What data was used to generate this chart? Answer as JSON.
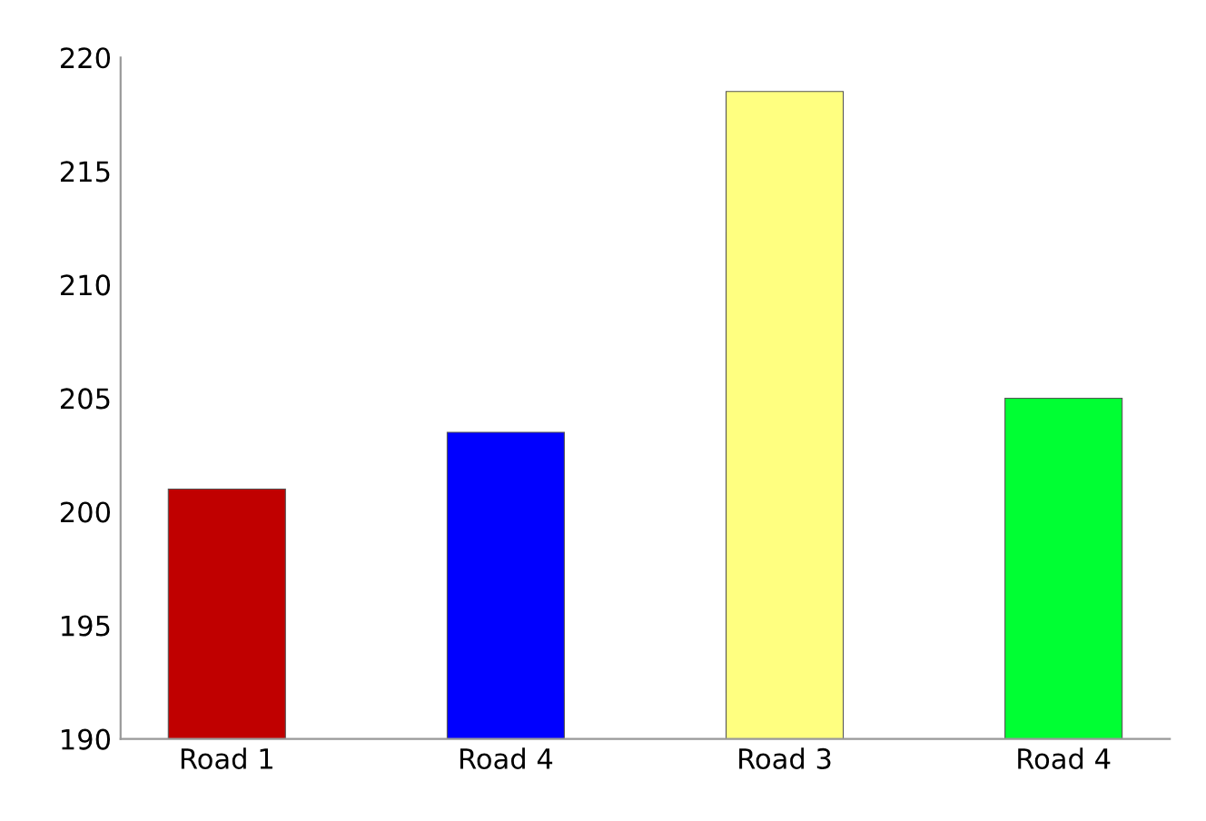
{
  "chart_data": {
    "type": "bar",
    "categories": [
      "Road 1",
      "Road 4",
      "Road 3",
      "Road 4"
    ],
    "values": [
      201,
      203.5,
      218.5,
      205
    ],
    "colors": [
      "#c00000",
      "#0000ff",
      "#ffff80",
      "#00ff33"
    ],
    "ylim": [
      190,
      220
    ],
    "yticks": [
      190,
      195,
      200,
      205,
      210,
      215,
      220
    ],
    "grid": false
  }
}
